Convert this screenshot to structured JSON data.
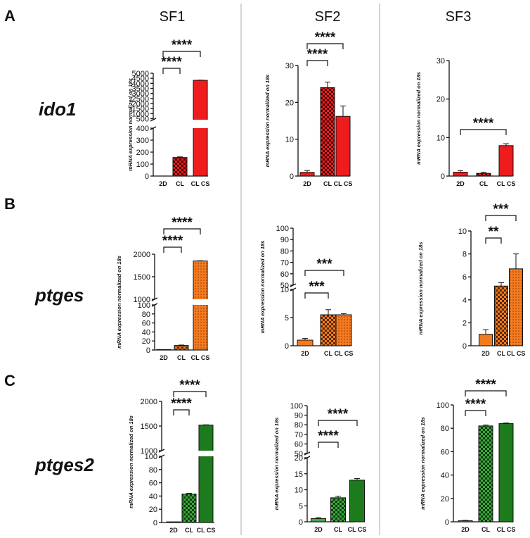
{
  "columns": [
    "SF1",
    "SF2",
    "SF3"
  ],
  "panels": [
    {
      "letter": "A",
      "gene": "ido1"
    },
    {
      "letter": "B",
      "gene": "ptges"
    },
    {
      "letter": "C",
      "gene": "ptges2"
    }
  ],
  "colors": {
    "ido1": "#ee1c1c",
    "ptges": "#f47a20",
    "ptges2": "#1d7a1d",
    "ptges2_light": "#3fa83f"
  },
  "chart_data": [
    {
      "id": "A-SF1",
      "type": "bar",
      "gene": "ido1",
      "column": "SF1",
      "ylabel": "mRNA expression normalized on 18s",
      "categories": [
        "2D",
        "CL",
        "CL CS"
      ],
      "values": [
        1,
        155,
        4300
      ],
      "errors": [
        0,
        5,
        20
      ],
      "axis_break": {
        "lower": [
          0,
          400
        ],
        "upper": [
          400,
          5000
        ]
      },
      "lower_ticks": [
        0,
        100,
        200,
        300,
        400
      ],
      "upper_ticks": [
        500,
        1000,
        1500,
        2000,
        2500,
        3000,
        3500,
        4000,
        4500,
        5000
      ],
      "significance": [
        {
          "from": 0,
          "to": 1,
          "label": "****"
        },
        {
          "from": 0,
          "to": 2,
          "label": "****"
        }
      ]
    },
    {
      "id": "A-SF2",
      "type": "bar",
      "gene": "ido1",
      "column": "SF2",
      "ylabel": "mRNA expression normalized on 18s",
      "categories": [
        "2D",
        "CL",
        "CL CS"
      ],
      "values": [
        1,
        24,
        16.2
      ],
      "errors": [
        0.5,
        1.5,
        2.8
      ],
      "ylim": [
        0,
        30
      ],
      "ticks": [
        0,
        10,
        20,
        30
      ],
      "significance": [
        {
          "from": 0,
          "to": 1,
          "label": "****"
        },
        {
          "from": 0,
          "to": 2,
          "label": "****"
        }
      ]
    },
    {
      "id": "A-SF3",
      "type": "bar",
      "gene": "ido1",
      "column": "SF3",
      "ylabel": "mRNA expression normalized on 18s",
      "categories": [
        "2D",
        "CL",
        "CL CS"
      ],
      "values": [
        1,
        0.7,
        7.9
      ],
      "errors": [
        0.4,
        0.3,
        0.5
      ],
      "ylim": [
        0,
        30
      ],
      "ticks": [
        0,
        10,
        20,
        30
      ],
      "significance": [
        {
          "from": 0,
          "to": 2,
          "label": "****"
        }
      ]
    },
    {
      "id": "B-SF1",
      "type": "bar",
      "gene": "ptges",
      "column": "SF1",
      "ylabel": "mRNA expression normalized on 18s",
      "categories": [
        "2D",
        "CL",
        "CL CS"
      ],
      "values": [
        1,
        10,
        1850
      ],
      "errors": [
        0,
        1,
        5
      ],
      "axis_break": {
        "lower": [
          0,
          100
        ],
        "upper": [
          1000,
          2000
        ]
      },
      "lower_ticks": [
        0,
        20,
        40,
        60,
        80,
        100
      ],
      "upper_ticks": [
        1000,
        1500,
        2000
      ],
      "significance": [
        {
          "from": 0,
          "to": 1,
          "label": "****"
        },
        {
          "from": 0,
          "to": 2,
          "label": "****"
        }
      ]
    },
    {
      "id": "B-SF2",
      "type": "bar",
      "gene": "ptges",
      "column": "SF2",
      "ylabel": "mRNA expression normalized on 18s",
      "categories": [
        "2D",
        "CL",
        "CL CS"
      ],
      "values": [
        1,
        5.5,
        5.5
      ],
      "errors": [
        0.3,
        0.9,
        0.2
      ],
      "axis_break": {
        "lower": [
          0,
          10
        ],
        "upper": [
          50,
          100
        ]
      },
      "lower_ticks": [
        0,
        5,
        10
      ],
      "upper_ticks": [
        50,
        60,
        70,
        80,
        90,
        100
      ],
      "significance": [
        {
          "from": 0,
          "to": 1,
          "label": "***"
        },
        {
          "from": 0,
          "to": 2,
          "label": "***"
        }
      ]
    },
    {
      "id": "B-SF3",
      "type": "bar",
      "gene": "ptges",
      "column": "SF3",
      "ylabel": "mRNA expression normalized on 18s",
      "categories": [
        "2D",
        "CL",
        "CL CS"
      ],
      "values": [
        1,
        5.2,
        6.7
      ],
      "errors": [
        0.4,
        0.3,
        1.3
      ],
      "ylim": [
        0,
        10
      ],
      "ticks": [
        0,
        2,
        4,
        6,
        8,
        10
      ],
      "significance": [
        {
          "from": 0,
          "to": 1,
          "label": "**"
        },
        {
          "from": 0,
          "to": 2,
          "label": "***"
        }
      ]
    },
    {
      "id": "C-SF1",
      "type": "bar",
      "gene": "ptges2",
      "column": "SF1",
      "ylabel": "mRNA expression normalized on 18s",
      "categories": [
        "2D",
        "CL",
        "CL CS"
      ],
      "values": [
        1,
        43,
        1520
      ],
      "errors": [
        0,
        1,
        5
      ],
      "axis_break": {
        "lower": [
          0,
          100
        ],
        "upper": [
          1000,
          2000
        ]
      },
      "lower_ticks": [
        0,
        20,
        40,
        60,
        80,
        100
      ],
      "upper_ticks": [
        1000,
        1500,
        2000
      ],
      "significance": [
        {
          "from": 0,
          "to": 1,
          "label": "****"
        },
        {
          "from": 0,
          "to": 2,
          "label": "****"
        }
      ]
    },
    {
      "id": "C-SF2",
      "type": "bar",
      "gene": "ptges2",
      "column": "SF2",
      "ylabel": "mRNA expression normalized on 18s",
      "categories": [
        "2D",
        "CL",
        "CL CS"
      ],
      "values": [
        1,
        7.5,
        13
      ],
      "errors": [
        0.3,
        0.5,
        0.5
      ],
      "axis_break": {
        "lower": [
          0,
          20
        ],
        "upper": [
          50,
          100
        ]
      },
      "lower_ticks": [
        0,
        5,
        10,
        15,
        20
      ],
      "upper_ticks": [
        50,
        60,
        70,
        80,
        90,
        100
      ],
      "significance": [
        {
          "from": 0,
          "to": 1,
          "label": "****"
        },
        {
          "from": 0,
          "to": 2,
          "label": "****"
        }
      ]
    },
    {
      "id": "C-SF3",
      "type": "bar",
      "gene": "ptges2",
      "column": "SF3",
      "ylabel": "mRNA expression normalized on 18s",
      "categories": [
        "2D",
        "CL",
        "CL CS"
      ],
      "values": [
        1,
        82,
        84
      ],
      "errors": [
        0.3,
        0.8,
        0.5
      ],
      "ylim": [
        0,
        100
      ],
      "ticks": [
        0,
        20,
        40,
        60,
        80,
        100
      ],
      "significance": [
        {
          "from": 0,
          "to": 1,
          "label": "****"
        },
        {
          "from": 0,
          "to": 2,
          "label": "****"
        }
      ]
    }
  ]
}
